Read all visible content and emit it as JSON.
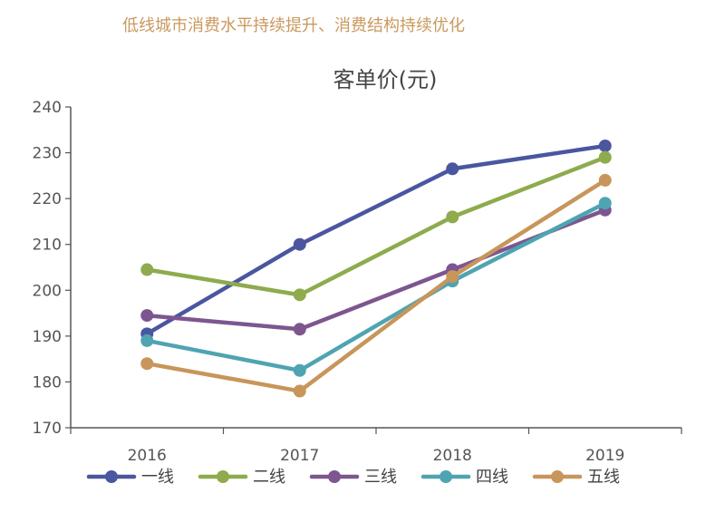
{
  "heading": "低线城市消费水平持续提升、消费结构持续优化",
  "colors": {
    "heading": "#c9995e",
    "axis": "#555555",
    "series": [
      "#4a56a0",
      "#8eab4d",
      "#7d5690",
      "#4fa4b2",
      "#c8955a"
    ]
  },
  "chart_data": {
    "type": "line",
    "title": "客单价(元)",
    "x": [
      "2016",
      "2017",
      "2018",
      "2019"
    ],
    "ylim": [
      170,
      240
    ],
    "yticks": [
      170,
      180,
      190,
      200,
      210,
      220,
      230,
      240
    ],
    "grid": false,
    "legend_position": "bottom",
    "series": [
      {
        "name": "一线",
        "values": [
          190.5,
          210,
          226.5,
          231.5
        ]
      },
      {
        "name": "二线",
        "values": [
          204.5,
          199,
          216,
          229
        ]
      },
      {
        "name": "三线",
        "values": [
          194.5,
          191.5,
          204.5,
          217.5
        ]
      },
      {
        "name": "四线",
        "values": [
          189,
          182.5,
          202,
          219
        ]
      },
      {
        "name": "五线",
        "values": [
          184,
          178,
          203,
          224
        ]
      }
    ]
  }
}
